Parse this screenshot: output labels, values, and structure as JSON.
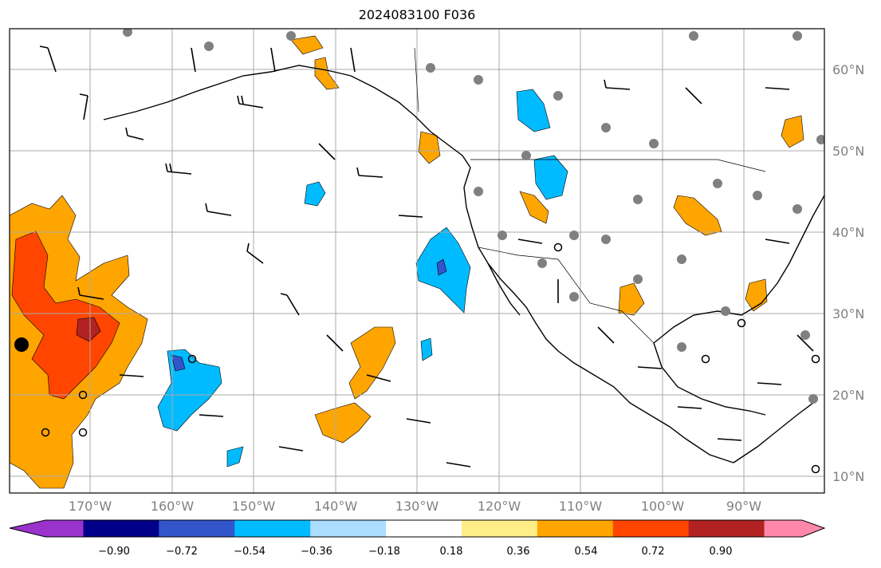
{
  "title": "2024083100 F036",
  "lat_labels": [
    "60°N",
    "50°N",
    "40°N",
    "30°N",
    "20°N",
    "10°N"
  ],
  "lon_labels": [
    "170°W",
    "160°W",
    "150°W",
    "140°W",
    "130°W",
    "120°W",
    "110°W",
    "100°W",
    "90°W"
  ],
  "colorbar": {
    "ticks": [
      "−0.90",
      "−0.72",
      "−0.54",
      "−0.36",
      "−0.18",
      "0.18",
      "0.36",
      "0.54",
      "0.72",
      "0.90"
    ],
    "colors": [
      "#9933cc",
      "#000088",
      "#3355cc",
      "#00bbff",
      "#aaddff",
      "#ffffff",
      "#ffee88",
      "#ffa500",
      "#ff4500",
      "#b22222",
      "#ff88aa"
    ]
  },
  "colors": {
    "grid": "#aaaaaa",
    "coast": "#000000",
    "station_marker": "#808080",
    "precip_positive": [
      "#ffee88",
      "#ffa500",
      "#ff4500",
      "#b22222"
    ],
    "precip_negative": [
      "#aaddff",
      "#00bbff",
      "#3355cc",
      "#9933cc"
    ]
  }
}
